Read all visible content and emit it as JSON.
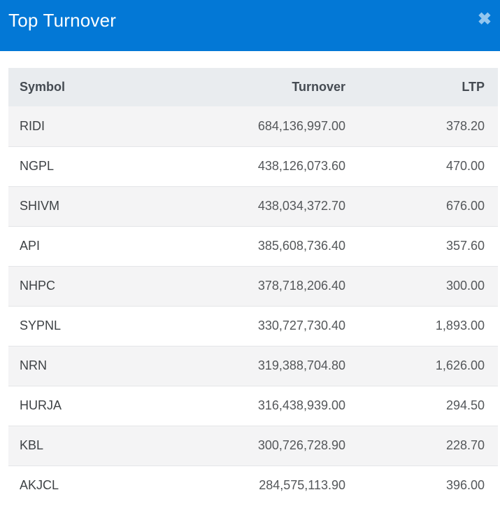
{
  "modal": {
    "title": "Top Turnover",
    "close_icon": "✖"
  },
  "colors": {
    "header_bg": "#0378d6",
    "close_icon": "#93c6ef",
    "table_header_bg": "#e9ecef",
    "row_stripe_bg": "#f4f4f5",
    "symbol_text": "#3e4245",
    "number_text": "#54575a"
  },
  "table": {
    "columns": [
      "Symbol",
      "Turnover",
      "LTP"
    ],
    "rows": [
      {
        "symbol": "RIDI",
        "turnover": "684,136,997.00",
        "ltp": "378.20"
      },
      {
        "symbol": "NGPL",
        "turnover": "438,126,073.60",
        "ltp": "470.00"
      },
      {
        "symbol": "SHIVM",
        "turnover": "438,034,372.70",
        "ltp": "676.00"
      },
      {
        "symbol": "API",
        "turnover": "385,608,736.40",
        "ltp": "357.60"
      },
      {
        "symbol": "NHPC",
        "turnover": "378,718,206.40",
        "ltp": "300.00"
      },
      {
        "symbol": "SYPNL",
        "turnover": "330,727,730.40",
        "ltp": "1,893.00"
      },
      {
        "symbol": "NRN",
        "turnover": "319,388,704.80",
        "ltp": "1,626.00"
      },
      {
        "symbol": "HURJA",
        "turnover": "316,438,939.00",
        "ltp": "294.50"
      },
      {
        "symbol": "KBL",
        "turnover": "300,726,728.90",
        "ltp": "228.70"
      },
      {
        "symbol": "AKJCL",
        "turnover": "284,575,113.90",
        "ltp": "396.00"
      }
    ]
  }
}
